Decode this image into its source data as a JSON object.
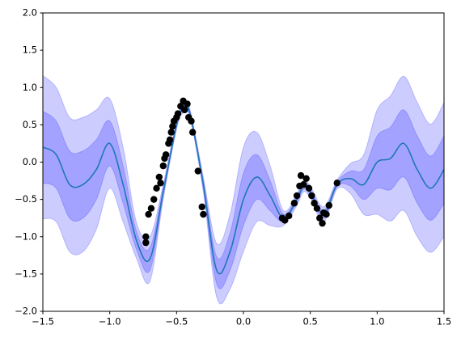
{
  "chart_data": {
    "type": "line",
    "x": [
      -1.5,
      -1.4,
      -1.3,
      -1.2,
      -1.1,
      -1.0,
      -0.9,
      -0.8,
      -0.7,
      -0.6,
      -0.5,
      -0.45,
      -0.4,
      -0.3,
      -0.2,
      -0.1,
      0.0,
      0.1,
      0.2,
      0.3,
      0.4,
      0.45,
      0.5,
      0.6,
      0.7,
      0.8,
      0.9,
      1.0,
      1.1,
      1.2,
      1.3,
      1.4,
      1.5
    ],
    "series": [
      {
        "color": "#1f77b4",
        "values": [
          0.2,
          0.1,
          -0.3,
          -0.3,
          -0.1,
          0.25,
          -0.3,
          -1.05,
          -1.3,
          -0.4,
          0.5,
          0.72,
          0.65,
          -0.3,
          -1.45,
          -1.2,
          -0.5,
          -0.2,
          -0.45,
          -0.75,
          -0.5,
          -0.32,
          -0.4,
          -0.7,
          -0.3,
          -0.22,
          -0.3,
          0.0,
          0.05,
          0.25,
          -0.1,
          -0.35,
          -0.1
        ]
      }
    ],
    "bands": [
      {
        "color": "#0000ff",
        "upper": [
          1.16,
          1.0,
          0.6,
          0.6,
          0.7,
          0.85,
          0.2,
          -0.81,
          -1.0,
          -0.3,
          0.56,
          0.78,
          0.71,
          -0.2,
          -1.09,
          -0.7,
          0.2,
          0.4,
          -0.05,
          -0.65,
          -0.42,
          -0.24,
          -0.32,
          -0.6,
          -0.24,
          -0.02,
          0.1,
          0.7,
          0.89,
          1.15,
          0.8,
          0.51,
          0.8
        ],
        "lower": [
          -0.76,
          -0.8,
          -1.2,
          -1.2,
          -0.9,
          -0.35,
          -0.8,
          -1.29,
          -1.6,
          -0.5,
          0.44,
          0.66,
          0.59,
          -0.4,
          -1.81,
          -1.7,
          -1.2,
          -0.8,
          -0.85,
          -0.85,
          -0.58,
          -0.4,
          -0.48,
          -0.8,
          -0.36,
          -0.42,
          -0.7,
          -0.7,
          -0.79,
          -0.65,
          -1.0,
          -1.21,
          -1.0
        ]
      },
      {
        "color": "#0000ff",
        "upper": [
          0.68,
          0.55,
          0.15,
          0.15,
          0.3,
          0.55,
          -0.05,
          -0.93,
          -1.15,
          -0.35,
          0.53,
          0.75,
          0.68,
          -0.25,
          -1.27,
          -0.95,
          -0.15,
          0.1,
          -0.25,
          -0.7,
          -0.46,
          -0.28,
          -0.36,
          -0.65,
          -0.27,
          -0.12,
          -0.1,
          0.35,
          0.47,
          0.7,
          0.35,
          0.08,
          0.35
        ],
        "lower": [
          -0.28,
          -0.35,
          -0.75,
          -0.75,
          -0.5,
          -0.05,
          -0.55,
          -1.17,
          -1.45,
          -0.45,
          0.47,
          0.69,
          0.62,
          -0.35,
          -1.63,
          -1.45,
          -0.85,
          -0.5,
          -0.65,
          -0.8,
          -0.54,
          -0.36,
          -0.44,
          -0.75,
          -0.33,
          -0.32,
          -0.5,
          -0.35,
          -0.37,
          -0.2,
          -0.55,
          -0.78,
          -0.55
        ]
      }
    ],
    "points": {
      "color": "#000000",
      "x": [
        -0.73,
        -0.73,
        -0.71,
        -0.69,
        -0.67,
        -0.65,
        -0.63,
        -0.62,
        -0.6,
        -0.59,
        -0.58,
        -0.56,
        -0.55,
        -0.54,
        -0.53,
        -0.52,
        -0.5,
        -0.49,
        -0.47,
        -0.45,
        -0.44,
        -0.42,
        -0.41,
        -0.39,
        -0.38,
        -0.34,
        -0.31,
        -0.3,
        0.29,
        0.31,
        0.34,
        0.38,
        0.4,
        0.42,
        0.43,
        0.45,
        0.47,
        0.49,
        0.51,
        0.53,
        0.55,
        0.57,
        0.59,
        0.6,
        0.62,
        0.64,
        0.7
      ],
      "y": [
        -1.0,
        -1.08,
        -0.7,
        -0.62,
        -0.5,
        -0.35,
        -0.2,
        -0.28,
        -0.05,
        0.05,
        0.1,
        0.25,
        0.3,
        0.4,
        0.48,
        0.55,
        0.6,
        0.65,
        0.75,
        0.82,
        0.7,
        0.78,
        0.6,
        0.55,
        0.4,
        -0.12,
        -0.6,
        -0.7,
        -0.75,
        -0.78,
        -0.72,
        -0.55,
        -0.45,
        -0.32,
        -0.18,
        -0.3,
        -0.22,
        -0.35,
        -0.45,
        -0.55,
        -0.62,
        -0.75,
        -0.82,
        -0.68,
        -0.7,
        -0.58,
        -0.28
      ]
    },
    "xlim": [
      -1.5,
      1.5
    ],
    "ylim": [
      -2.0,
      2.0
    ],
    "xticks": [
      {
        "value": -1.5,
        "label": "−1.5"
      },
      {
        "value": -1.0,
        "label": "−1.0"
      },
      {
        "value": -0.5,
        "label": "−0.5"
      },
      {
        "value": 0.0,
        "label": "0.0"
      },
      {
        "value": 0.5,
        "label": "0.5"
      },
      {
        "value": 1.0,
        "label": "1.0"
      },
      {
        "value": 1.5,
        "label": "1.5"
      }
    ],
    "yticks": [
      {
        "value": -2.0,
        "label": "−2.0"
      },
      {
        "value": -1.5,
        "label": "−1.5"
      },
      {
        "value": -1.0,
        "label": "−1.0"
      },
      {
        "value": -0.5,
        "label": "−0.5"
      },
      {
        "value": 0.0,
        "label": "0.0"
      },
      {
        "value": 0.5,
        "label": "0.5"
      },
      {
        "value": 1.0,
        "label": "1.0"
      },
      {
        "value": 1.5,
        "label": "1.5"
      },
      {
        "value": 2.0,
        "label": "2.0"
      }
    ]
  }
}
